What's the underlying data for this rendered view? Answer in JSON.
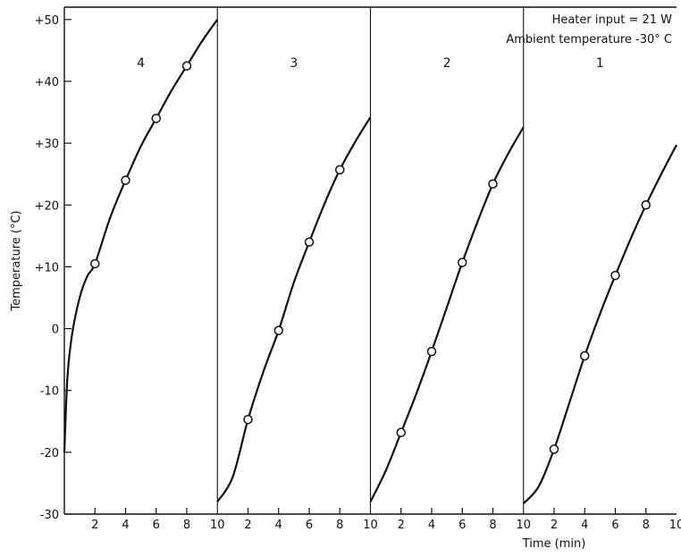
{
  "chart_data": {
    "type": "line",
    "title": "",
    "xlabel": "Time (min)",
    "ylabel": "Temperature (°C)",
    "ylim": [
      -30,
      52
    ],
    "yticks": [
      -30,
      -20,
      -10,
      0,
      10,
      20,
      30,
      40,
      50
    ],
    "ytick_labels": [
      "-30",
      "-20",
      "-10",
      "0",
      "+10",
      "+20",
      "+30",
      "+40",
      "+50"
    ],
    "xlim": [
      0,
      10
    ],
    "xticks": [
      2,
      4,
      6,
      8,
      10
    ],
    "xtick_labels": [
      "2",
      "4",
      "6",
      "8",
      "10"
    ],
    "grid": false,
    "annotations": [
      "Heater input = 21 W",
      "Ambient temperature -30° C"
    ],
    "panels": [
      {
        "label": "4",
        "curve_x": [
          0,
          0.2,
          0.5,
          1,
          1.5,
          2,
          3,
          4,
          5,
          6,
          7,
          8,
          9,
          10
        ],
        "curve_y": [
          -20,
          -8,
          -1,
          5,
          8.5,
          10.5,
          18,
          24,
          29.5,
          34,
          38.5,
          42.5,
          46.5,
          50
        ],
        "markers_x": [
          2,
          4,
          6,
          8
        ],
        "markers_y": [
          10.5,
          24,
          34,
          42.5
        ]
      },
      {
        "label": "3",
        "curve_x": [
          0,
          1,
          2,
          3,
          4,
          5,
          6,
          7,
          8,
          9,
          10
        ],
        "curve_y": [
          -28,
          -24,
          -14.7,
          -7,
          -0.3,
          7.5,
          14,
          20.2,
          25.7,
          30.2,
          34.2
        ],
        "markers_x": [
          2,
          4,
          6,
          8
        ],
        "markers_y": [
          -14.7,
          -0.3,
          14,
          25.7
        ]
      },
      {
        "label": "2",
        "curve_x": [
          0,
          1,
          2,
          3,
          4,
          5,
          6,
          7,
          8,
          9,
          10
        ],
        "curve_y": [
          -28,
          -23,
          -16.8,
          -10.5,
          -3.7,
          3.5,
          10.7,
          17.3,
          23.4,
          28.3,
          32.6
        ],
        "markers_x": [
          2,
          4,
          6,
          8
        ],
        "markers_y": [
          -16.8,
          -3.7,
          10.7,
          23.4
        ]
      },
      {
        "label": "1",
        "curve_x": [
          0,
          1,
          2,
          3,
          4,
          5,
          6,
          7,
          8,
          9,
          10
        ],
        "curve_y": [
          -28.3,
          -25.5,
          -19.5,
          -12,
          -4.4,
          2.4,
          8.6,
          14.5,
          20,
          25,
          29.7
        ],
        "markers_x": [
          2,
          4,
          6,
          8
        ],
        "markers_y": [
          -19.5,
          -4.4,
          8.6,
          20
        ]
      }
    ]
  }
}
